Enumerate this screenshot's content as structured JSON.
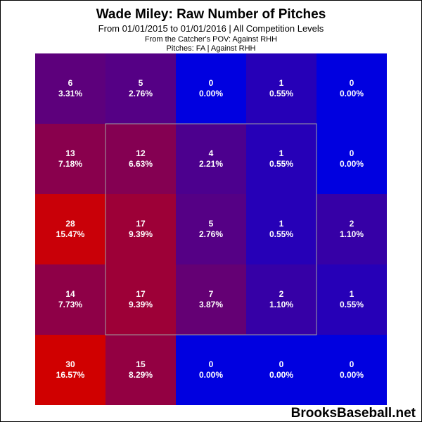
{
  "header": {
    "title": "Wade Miley: Raw Number of Pitches",
    "subtitle": "From 01/01/2015 to 01/01/2016 | All Competition Levels",
    "pov": "From the Catcher's POV:  Against RHH",
    "filters": "Pitches:  FA  |  Against RHH"
  },
  "watermark": "BrooksBaseball.net",
  "colors": {
    "high": "#d00000",
    "low": "#0000e0",
    "strike_zone_outline": "#a0a0a0",
    "label_text": "#ffffff"
  },
  "chart_data": {
    "type": "heatmap",
    "title": "Wade Miley: Raw Number of Pitches",
    "rows": 5,
    "cols": 5,
    "counts": [
      [
        6,
        5,
        0,
        1,
        0
      ],
      [
        13,
        12,
        4,
        1,
        0
      ],
      [
        28,
        17,
        5,
        1,
        2
      ],
      [
        14,
        17,
        7,
        2,
        1
      ],
      [
        30,
        15,
        0,
        0,
        0
      ]
    ],
    "percents": [
      [
        "3.31%",
        "2.76%",
        "0.00%",
        "0.55%",
        "0.00%"
      ],
      [
        "7.18%",
        "6.63%",
        "2.21%",
        "0.55%",
        "0.00%"
      ],
      [
        "15.47%",
        "9.39%",
        "2.76%",
        "0.55%",
        "1.10%"
      ],
      [
        "7.73%",
        "9.39%",
        "3.87%",
        "1.10%",
        "0.55%"
      ],
      [
        "16.57%",
        "8.29%",
        "0.00%",
        "0.00%",
        "0.00%"
      ]
    ],
    "strike_zone": {
      "rows": [
        1,
        3
      ],
      "cols": [
        1,
        3
      ]
    },
    "grid": false,
    "legend": false
  }
}
